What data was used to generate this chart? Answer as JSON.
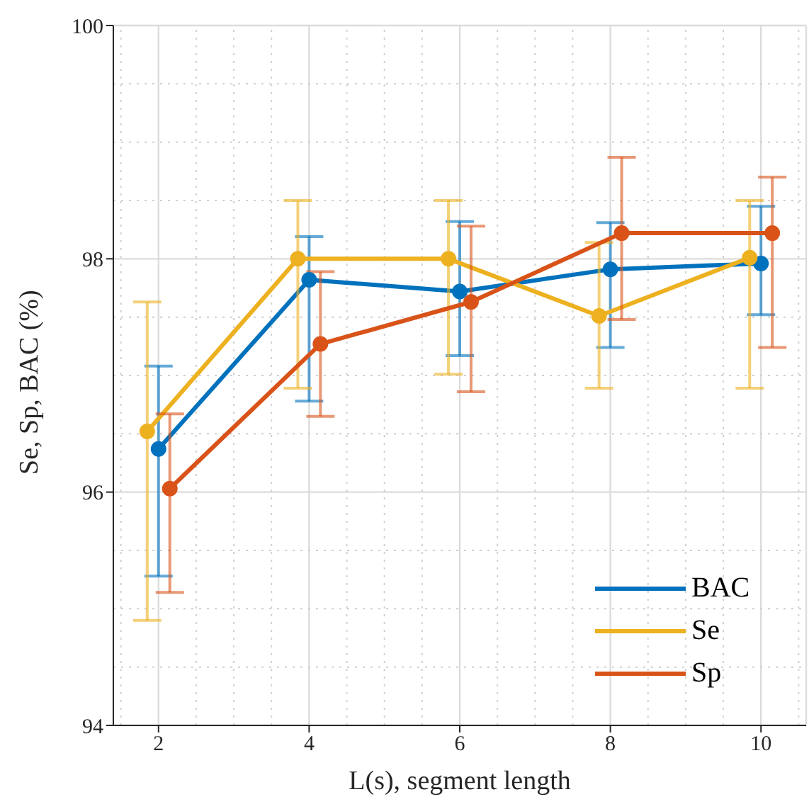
{
  "chart_data": {
    "type": "line",
    "xlabel": "L(s), segment length",
    "ylabel": "Se, Sp, BAC (%)",
    "xlim": [
      1.4,
      10.6
    ],
    "xticks": [
      2,
      4,
      6,
      8,
      10
    ],
    "ylim": [
      94,
      100
    ],
    "yticks": [
      94,
      96,
      98,
      100
    ],
    "grid": true,
    "legend": "bottom right",
    "marker": "circle",
    "line_style": "solid",
    "series": [
      {
        "name": "BAC",
        "color": "#0072bd",
        "x": [
          2,
          4,
          6,
          8,
          10
        ],
        "values": [
          96.37,
          97.82,
          97.72,
          97.91,
          97.96
        ],
        "errors": [
          [
            95.28,
            97.08
          ],
          [
            96.78,
            98.19
          ],
          [
            97.17,
            98.32
          ],
          [
            97.24,
            98.31
          ],
          [
            97.52,
            98.45
          ]
        ]
      },
      {
        "name": "Se",
        "color": "#edb120",
        "x": [
          1.85,
          3.85,
          5.85,
          7.85,
          9.85
        ],
        "values": [
          96.52,
          98.0,
          98.0,
          97.51,
          98.01
        ],
        "errors": [
          [
            94.9,
            97.63
          ],
          [
            96.89,
            98.5
          ],
          [
            97.01,
            98.5
          ],
          [
            96.89,
            98.14
          ],
          [
            96.89,
            98.5
          ]
        ]
      },
      {
        "name": "Sp",
        "color": "#d95319",
        "x": [
          2.15,
          4.15,
          6.15,
          8.15,
          10.15
        ],
        "values": [
          96.03,
          97.27,
          97.63,
          98.22,
          98.22
        ],
        "errors": [
          [
            95.14,
            96.67
          ],
          [
            96.65,
            97.89
          ],
          [
            96.86,
            98.28
          ],
          [
            97.48,
            98.87
          ],
          [
            97.24,
            98.7
          ]
        ]
      }
    ]
  }
}
